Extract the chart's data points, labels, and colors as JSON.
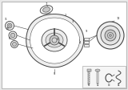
{
  "bg_color": "#ffffff",
  "border_color": "#bbbbbb",
  "line_color": "#444444",
  "dark_color": "#222222",
  "gray_fill": "#d8d8d8",
  "light_fill": "#eeeeee",
  "mid_fill": "#c8c8c8",
  "fig_bg": "#e8e8e8"
}
